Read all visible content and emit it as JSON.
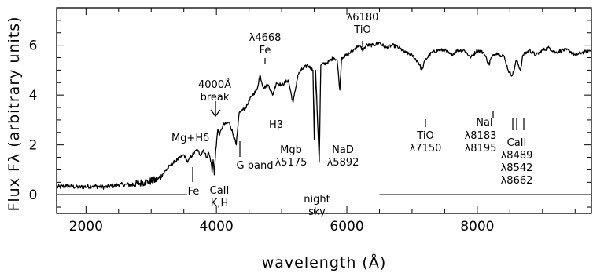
{
  "chart_data": {
    "type": "line",
    "xlabel": "wavelength (Å)",
    "ylabel": "Flux Fλ (arbitrary units)",
    "xlim": [
      1550,
      9750
    ],
    "ylim": [
      -0.75,
      7.5
    ],
    "x_ticks": [
      2000,
      4000,
      6000,
      8000
    ],
    "x_tick_labels": [
      "2000",
      "4000",
      "6000",
      "8000"
    ],
    "y_ticks": [
      0,
      2,
      4,
      6
    ],
    "y_tick_labels": [
      "0",
      "2",
      "4",
      "6"
    ],
    "grid": false,
    "zero_lines": [
      [
        1550,
        3550
      ],
      [
        6500,
        9750
      ]
    ],
    "series": [
      {
        "x": [
          1550,
          1700,
          1900,
          2100,
          2300,
          2500,
          2700,
          2900,
          3100,
          3200,
          3300,
          3400,
          3500,
          3560,
          3600,
          3700,
          3760,
          3800,
          3850,
          3880,
          3920,
          3933,
          3950,
          3968,
          3990,
          4020,
          4050,
          4100,
          4200,
          4304,
          4350,
          4450,
          4550,
          4620,
          4668,
          4720,
          4800,
          4861,
          4920,
          5000,
          5100,
          5175,
          5250,
          5300,
          5400,
          5480,
          5500,
          5520,
          5577,
          5600,
          5700,
          5800,
          5850,
          5892,
          5920,
          6000,
          6100,
          6180,
          6250,
          6300,
          6400,
          6500,
          6600,
          6700,
          6800,
          6900,
          7000,
          7100,
          7150,
          7200,
          7300,
          7400,
          7500,
          7600,
          7700,
          7800,
          7900,
          8000,
          8100,
          8183,
          8195,
          8250,
          8300,
          8350,
          8400,
          8489,
          8542,
          8600,
          8662,
          8700,
          8800,
          8900,
          9000,
          9100,
          9200,
          9300,
          9400,
          9500,
          9600,
          9750
        ],
        "y": [
          0.3,
          0.35,
          0.3,
          0.35,
          0.3,
          0.4,
          0.4,
          0.5,
          0.6,
          0.9,
          1.2,
          1.4,
          1.6,
          1.3,
          1.5,
          1.8,
          1.6,
          1.8,
          1.5,
          1.7,
          1.3,
          0.9,
          1.4,
          0.8,
          1.8,
          2.6,
          2.4,
          2.8,
          2.9,
          2.0,
          3.3,
          3.5,
          4.0,
          4.2,
          4.8,
          4.3,
          4.4,
          4.0,
          4.5,
          4.4,
          4.6,
          3.7,
          4.8,
          5.0,
          5.2,
          5.0,
          2.2,
          5.0,
          1.3,
          5.2,
          5.3,
          5.5,
          5.4,
          4.2,
          5.5,
          5.6,
          5.8,
          6.0,
          5.8,
          6.0,
          6.0,
          6.1,
          5.9,
          6.0,
          5.9,
          5.7,
          5.6,
          5.3,
          5.0,
          5.4,
          5.7,
          5.8,
          5.8,
          5.6,
          5.8,
          5.8,
          5.5,
          5.8,
          5.7,
          5.2,
          5.4,
          5.6,
          5.7,
          5.6,
          5.6,
          4.9,
          4.8,
          5.4,
          5.0,
          5.6,
          5.8,
          5.6,
          5.8,
          5.9,
          5.7,
          5.8,
          5.8,
          5.6,
          5.7,
          5.8
        ]
      }
    ],
    "annotations": [
      {
        "lines": [
          "λ6180",
          "TiO"
        ]
      },
      {
        "lines": [
          "λ4668",
          "Fe"
        ]
      },
      {
        "lines": [
          "4000Å",
          "break"
        ]
      },
      {
        "lines": [
          "Mg+Hδ"
        ]
      },
      {
        "lines": [
          "Hβ"
        ]
      },
      {
        "lines": [
          "Mgb",
          "λ5175"
        ]
      },
      {
        "lines": [
          "NaD",
          "λ5892"
        ]
      },
      {
        "lines": [
          "TiO",
          "λ7150"
        ]
      },
      {
        "lines": [
          "λ8183",
          "λ8195"
        ]
      },
      {
        "lines": [
          "NaI"
        ]
      },
      {
        "lines": [
          "CaII",
          "λ8489",
          "λ8542",
          "λ8662"
        ]
      },
      {
        "lines": [
          "G band"
        ]
      },
      {
        "lines": [
          "night",
          "sky"
        ]
      },
      {
        "lines": [
          "Fe"
        ]
      },
      {
        "lines": [
          "CaII",
          "K,H"
        ]
      }
    ]
  }
}
